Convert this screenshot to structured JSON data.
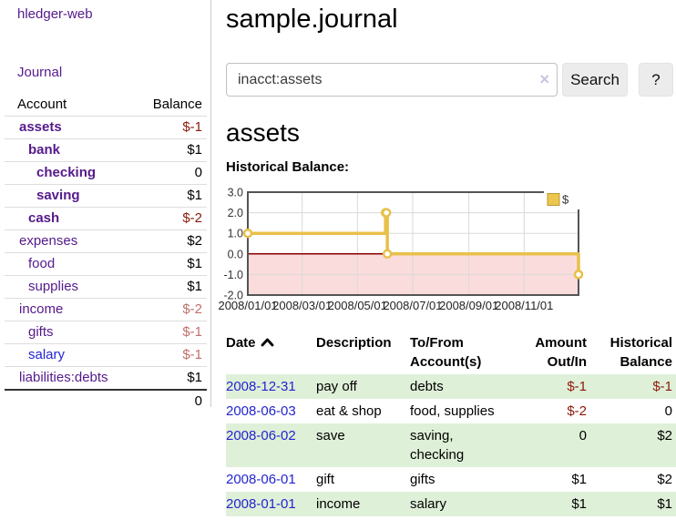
{
  "colors": {
    "link_purple": "#551a8b",
    "link_blue": "#2424d0",
    "neg_strong": "#8c1a0a",
    "neg_soft": "#bf706b",
    "row_green": "#dff0d8",
    "zero_line": "#8b0000",
    "chart_line": "#e8c04a",
    "chart_neg_fill": "#fbdcdc"
  },
  "sidebar": {
    "app_title": "hledger-web",
    "journal_label": "Journal",
    "accounts_header": {
      "account": "Account",
      "balance": "Balance"
    },
    "accounts": [
      {
        "name": "assets",
        "indent": 1,
        "bold": true,
        "balance": "$-1",
        "neg": "strong"
      },
      {
        "name": "bank",
        "indent": 2,
        "bold": true,
        "balance": "$1",
        "neg": ""
      },
      {
        "name": "checking",
        "indent": 3,
        "bold": true,
        "balance": "0",
        "neg": ""
      },
      {
        "name": "saving",
        "indent": 3,
        "bold": true,
        "balance": "$1",
        "neg": ""
      },
      {
        "name": "cash",
        "indent": 2,
        "bold": true,
        "balance": "$-2",
        "neg": "strong"
      },
      {
        "name": "expenses",
        "indent": 1,
        "bold": false,
        "balance": "$2",
        "neg": ""
      },
      {
        "name": "food",
        "indent": 2,
        "bold": false,
        "balance": "$1",
        "neg": ""
      },
      {
        "name": "supplies",
        "indent": 2,
        "bold": false,
        "balance": "$1",
        "neg": ""
      },
      {
        "name": "income",
        "indent": 1,
        "bold": false,
        "balance": "$-2",
        "neg": "soft"
      },
      {
        "name": "gifts",
        "indent": 2,
        "bold": false,
        "balance": "$-1",
        "neg": "soft"
      },
      {
        "name": "salary",
        "indent": 2,
        "bold": false,
        "balance": "$-1",
        "neg": "soft",
        "link_color": "blue"
      },
      {
        "name": "liabilities:debts",
        "indent": 1,
        "bold": false,
        "balance": "$1",
        "neg": ""
      }
    ],
    "total": "0"
  },
  "header": {
    "title": "sample.journal"
  },
  "search": {
    "value": "inacct:assets",
    "clear_icon": "×",
    "button_label": "Search",
    "help_label": "?"
  },
  "account_page": {
    "heading": "assets",
    "chart_label": "Historical Balance:"
  },
  "chart_data": {
    "type": "line",
    "step": true,
    "title": "Historical Balance:",
    "series": [
      {
        "name": "$",
        "color": "#e8c04a",
        "points": [
          [
            "2008-01-01",
            1
          ],
          [
            "2008-06-01",
            2
          ],
          [
            "2008-06-02",
            2
          ],
          [
            "2008-06-03",
            0
          ],
          [
            "2008-12-31",
            -1
          ]
        ]
      }
    ],
    "x_ticks": [
      "2008/01/01",
      "2008/03/01",
      "2008/05/01",
      "2008/07/01",
      "2008/09/01",
      "2008/11/01"
    ],
    "y_ticks": [
      3.0,
      2.0,
      1.0,
      0.0,
      -1.0,
      -2.0
    ],
    "ylim": [
      -2,
      3
    ],
    "x_start": "2008-01-01",
    "x_span_days": 365,
    "grid": true,
    "legend_position": "top-right",
    "negative_region_fill": "#fbdcdc",
    "zero_line_color": "#8b0000"
  },
  "register": {
    "headers": {
      "date": "Date",
      "description": "Description",
      "accounts": "To/From\nAccount(s)",
      "amount": "Amount\nOut/In",
      "balance": "Historical\nBalance"
    },
    "rows": [
      {
        "date": "2008-12-31",
        "description": "pay off",
        "accounts": [
          "debts"
        ],
        "amount": "$-1",
        "amount_neg": true,
        "balance": "$-1",
        "balance_neg": true,
        "shaded": true
      },
      {
        "date": "2008-06-03",
        "description": "eat & shop",
        "accounts": [
          "food, supplies"
        ],
        "amount": "$-2",
        "amount_neg": true,
        "balance": "0",
        "balance_neg": false,
        "shaded": false
      },
      {
        "date": "2008-06-02",
        "description": "save",
        "accounts": [
          "saving,",
          "checking"
        ],
        "amount": "0",
        "amount_neg": false,
        "balance": "$2",
        "balance_neg": false,
        "shaded": true
      },
      {
        "date": "2008-06-01",
        "description": "gift",
        "accounts": [
          "gifts"
        ],
        "amount": "$1",
        "amount_neg": false,
        "balance": "$2",
        "balance_neg": false,
        "shaded": false
      },
      {
        "date": "2008-01-01",
        "description": "income",
        "accounts": [
          "salary"
        ],
        "amount": "$1",
        "amount_neg": false,
        "balance": "$1",
        "balance_neg": false,
        "shaded": true
      }
    ]
  }
}
